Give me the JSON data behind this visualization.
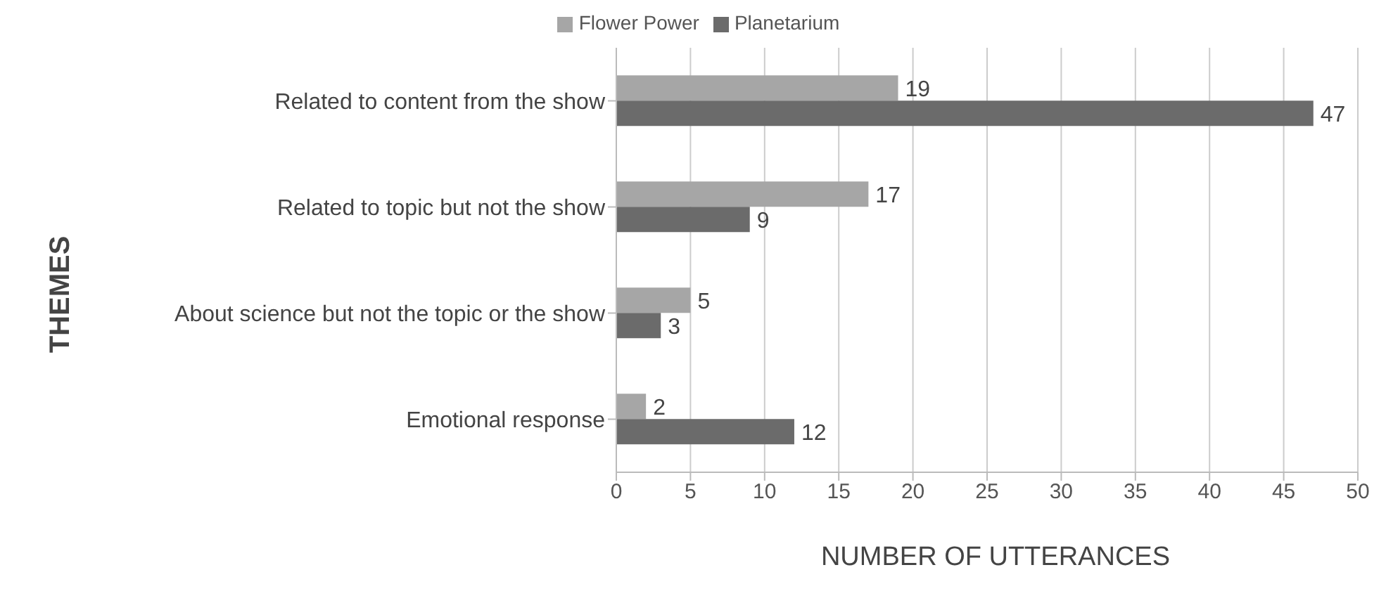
{
  "chart_data": {
    "type": "bar",
    "orientation": "horizontal",
    "xlabel": "NUMBER OF UTTERANCES",
    "ylabel": "THEMES",
    "categories": [
      "Related to content from the show",
      "Related to topic but not the show",
      "About science but not the topic or the show",
      "Emotional response"
    ],
    "series": [
      {
        "name": "Flower Power",
        "color": "#a6a6a6",
        "values": [
          19,
          17,
          5,
          2
        ]
      },
      {
        "name": "Planetarium",
        "color": "#6b6b6b",
        "values": [
          47,
          9,
          3,
          12
        ]
      }
    ],
    "xlim": [
      0,
      50
    ],
    "xticks": [
      0,
      5,
      10,
      15,
      20,
      25,
      30,
      35,
      40,
      45,
      50
    ],
    "grid": "x",
    "legend": "top",
    "data_labels": true
  }
}
